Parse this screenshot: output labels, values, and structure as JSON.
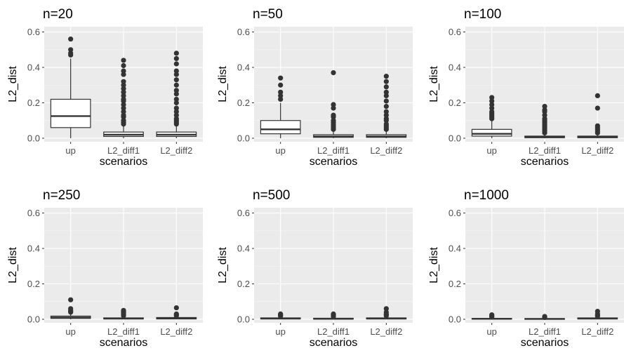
{
  "chart_data": [
    {
      "type": "box",
      "title": "n=20",
      "xlabel": "scenarios",
      "ylabel": "L2_dist",
      "categories": [
        "up",
        "L2_diff1",
        "L2_diff2"
      ],
      "ylim": [
        -0.02,
        0.63
      ],
      "yticks": [
        0.0,
        0.2,
        0.4,
        0.6
      ],
      "ytick_labels": [
        "0.0",
        "0.2",
        "0.4",
        "0.6"
      ],
      "boxes": [
        {
          "category": "up",
          "lower_whisker": 0.0,
          "q1": 0.06,
          "median": 0.125,
          "q3": 0.22,
          "upper_whisker": 0.45,
          "outliers": [
            0.47,
            0.48,
            0.5,
            0.56
          ]
        },
        {
          "category": "L2_diff1",
          "lower_whisker": 0.0,
          "q1": 0.01,
          "median": 0.02,
          "q3": 0.035,
          "upper_whisker": 0.07,
          "outliers": [
            0.08,
            0.09,
            0.1,
            0.12,
            0.13,
            0.15,
            0.17,
            0.19,
            0.21,
            0.22,
            0.24,
            0.26,
            0.28,
            0.3,
            0.32,
            0.36,
            0.38,
            0.41,
            0.44
          ]
        },
        {
          "category": "L2_diff2",
          "lower_whisker": 0.0,
          "q1": 0.01,
          "median": 0.02,
          "q3": 0.035,
          "upper_whisker": 0.07,
          "outliers": [
            0.08,
            0.09,
            0.1,
            0.11,
            0.13,
            0.15,
            0.17,
            0.2,
            0.22,
            0.25,
            0.27,
            0.3,
            0.33,
            0.36,
            0.38,
            0.42,
            0.45,
            0.48
          ]
        }
      ]
    },
    {
      "type": "box",
      "title": "n=50",
      "xlabel": "scenarios",
      "ylabel": "L2_dist",
      "categories": [
        "up",
        "L2_diff1",
        "L2_diff2"
      ],
      "ylim": [
        -0.02,
        0.63
      ],
      "yticks": [
        0.0,
        0.2,
        0.4,
        0.6
      ],
      "ytick_labels": [
        "0.0",
        "0.2",
        "0.4",
        "0.6"
      ],
      "boxes": [
        {
          "category": "up",
          "lower_whisker": 0.0,
          "q1": 0.025,
          "median": 0.05,
          "q3": 0.1,
          "upper_whisker": 0.2,
          "outliers": [
            0.22,
            0.24,
            0.26,
            0.3,
            0.34
          ]
        },
        {
          "category": "L2_diff1",
          "lower_whisker": 0.0,
          "q1": 0.005,
          "median": 0.01,
          "q3": 0.02,
          "upper_whisker": 0.04,
          "outliers": [
            0.05,
            0.06,
            0.07,
            0.08,
            0.09,
            0.1,
            0.12,
            0.13,
            0.17,
            0.19,
            0.37
          ]
        },
        {
          "category": "L2_diff2",
          "lower_whisker": 0.0,
          "q1": 0.005,
          "median": 0.01,
          "q3": 0.02,
          "upper_whisker": 0.04,
          "outliers": [
            0.05,
            0.06,
            0.07,
            0.08,
            0.1,
            0.11,
            0.13,
            0.15,
            0.18,
            0.21,
            0.24,
            0.26,
            0.29,
            0.32,
            0.35
          ]
        }
      ]
    },
    {
      "type": "box",
      "title": "n=100",
      "xlabel": "scenarios",
      "ylabel": "L2_dist",
      "categories": [
        "up",
        "L2_diff1",
        "L2_diff2"
      ],
      "ylim": [
        -0.02,
        0.63
      ],
      "yticks": [
        0.0,
        0.2,
        0.4,
        0.6
      ],
      "ytick_labels": [
        "0.0",
        "0.2",
        "0.4",
        "0.6"
      ],
      "boxes": [
        {
          "category": "up",
          "lower_whisker": 0.0,
          "q1": 0.012,
          "median": 0.025,
          "q3": 0.05,
          "upper_whisker": 0.1,
          "outliers": [
            0.11,
            0.12,
            0.13,
            0.14,
            0.15,
            0.17,
            0.19,
            0.21,
            0.23
          ]
        },
        {
          "category": "L2_diff1",
          "lower_whisker": 0.0,
          "q1": 0.003,
          "median": 0.006,
          "q3": 0.012,
          "upper_whisker": 0.025,
          "outliers": [
            0.03,
            0.04,
            0.05,
            0.06,
            0.07,
            0.08,
            0.09,
            0.1,
            0.11,
            0.13,
            0.15,
            0.16,
            0.18
          ]
        },
        {
          "category": "L2_diff2",
          "lower_whisker": 0.0,
          "q1": 0.003,
          "median": 0.006,
          "q3": 0.012,
          "upper_whisker": 0.025,
          "outliers": [
            0.03,
            0.04,
            0.05,
            0.06,
            0.07,
            0.17,
            0.24
          ]
        }
      ]
    },
    {
      "type": "box",
      "title": "n=250",
      "xlabel": "scenarios",
      "ylabel": "L2_dist",
      "categories": [
        "up",
        "L2_diff1",
        "L2_diff2"
      ],
      "ylim": [
        -0.02,
        0.63
      ],
      "yticks": [
        0.0,
        0.2,
        0.4,
        0.6
      ],
      "ytick_labels": [
        "0.0",
        "0.2",
        "0.4",
        "0.6"
      ],
      "boxes": [
        {
          "category": "up",
          "lower_whisker": 0.0,
          "q1": 0.005,
          "median": 0.01,
          "q3": 0.018,
          "upper_whisker": 0.035,
          "outliers": [
            0.04,
            0.045,
            0.05,
            0.06,
            0.11
          ]
        },
        {
          "category": "L2_diff1",
          "lower_whisker": 0.0,
          "q1": 0.002,
          "median": 0.004,
          "q3": 0.008,
          "upper_whisker": 0.015,
          "outliers": [
            0.02,
            0.025,
            0.03,
            0.035,
            0.04,
            0.045,
            0.05
          ]
        },
        {
          "category": "L2_diff2",
          "lower_whisker": 0.0,
          "q1": 0.002,
          "median": 0.005,
          "q3": 0.01,
          "upper_whisker": 0.018,
          "outliers": [
            0.02,
            0.025,
            0.03,
            0.065
          ]
        }
      ]
    },
    {
      "type": "box",
      "title": "n=500",
      "xlabel": "scenarios",
      "ylabel": "L2_dist",
      "categories": [
        "up",
        "L2_diff1",
        "L2_diff2"
      ],
      "ylim": [
        -0.02,
        0.63
      ],
      "yticks": [
        0.0,
        0.2,
        0.4,
        0.6
      ],
      "ytick_labels": [
        "0.0",
        "0.2",
        "0.4",
        "0.6"
      ],
      "boxes": [
        {
          "category": "up",
          "lower_whisker": 0.0,
          "q1": 0.002,
          "median": 0.004,
          "q3": 0.008,
          "upper_whisker": 0.015,
          "outliers": [
            0.018,
            0.022,
            0.026,
            0.03
          ]
        },
        {
          "category": "L2_diff1",
          "lower_whisker": 0.0,
          "q1": 0.001,
          "median": 0.003,
          "q3": 0.006,
          "upper_whisker": 0.012,
          "outliers": [
            0.015,
            0.02,
            0.025,
            0.03
          ]
        },
        {
          "category": "L2_diff2",
          "lower_whisker": 0.0,
          "q1": 0.002,
          "median": 0.004,
          "q3": 0.008,
          "upper_whisker": 0.015,
          "outliers": [
            0.02,
            0.025,
            0.03,
            0.04,
            0.06
          ]
        }
      ]
    },
    {
      "type": "box",
      "title": "n=1000",
      "xlabel": "scenarios",
      "ylabel": "L2_dist",
      "categories": [
        "up",
        "L2_diff1",
        "L2_diff2"
      ],
      "ylim": [
        -0.02,
        0.63
      ],
      "yticks": [
        0.0,
        0.2,
        0.4,
        0.6
      ],
      "ytick_labels": [
        "0.0",
        "0.2",
        "0.4",
        "0.6"
      ],
      "boxes": [
        {
          "category": "up",
          "lower_whisker": 0.0,
          "q1": 0.001,
          "median": 0.003,
          "q3": 0.005,
          "upper_whisker": 0.01,
          "outliers": [
            0.012,
            0.015,
            0.02,
            0.025
          ]
        },
        {
          "category": "L2_diff1",
          "lower_whisker": 0.0,
          "q1": 0.001,
          "median": 0.002,
          "q3": 0.004,
          "upper_whisker": 0.008,
          "outliers": [
            0.01,
            0.013,
            0.016
          ]
        },
        {
          "category": "L2_diff2",
          "lower_whisker": 0.0,
          "q1": 0.002,
          "median": 0.004,
          "q3": 0.008,
          "upper_whisker": 0.015,
          "outliers": [
            0.018,
            0.022,
            0.03,
            0.045
          ]
        }
      ]
    }
  ],
  "colors": {
    "panel_background": "#ebebeb",
    "grid_major": "#ffffff",
    "grid_minor": "#f5f5f5",
    "box_outline": "#333333",
    "box_fill": "#ffffff",
    "outlier": "#333333",
    "tick_label": "#4d4d4d"
  }
}
